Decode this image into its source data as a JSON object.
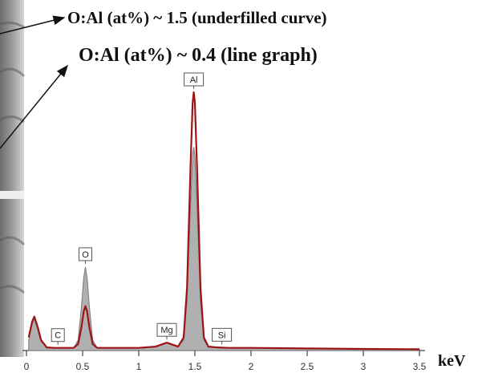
{
  "chart_data": {
    "type": "line",
    "annotations": [
      "O:Al (at%) ~ 1.5 (underfilled curve)",
      "O:Al (at%) ~ 0.4  (line graph)"
    ],
    "x_label": "keV",
    "xlim": [
      0,
      3.5
    ],
    "xticks": [
      0,
      0.5,
      1,
      1.5,
      2,
      2.5,
      3,
      3.5
    ],
    "x": [
      0.02,
      0.05,
      0.07,
      0.1,
      0.13,
      0.18,
      0.25,
      0.35,
      0.42,
      0.46,
      0.49,
      0.51,
      0.525,
      0.54,
      0.56,
      0.59,
      0.63,
      0.7,
      0.85,
      1.0,
      1.15,
      1.25,
      1.35,
      1.4,
      1.43,
      1.46,
      1.48,
      1.49,
      1.5,
      1.52,
      1.55,
      1.58,
      1.62,
      1.7,
      1.8,
      2.0,
      2.5,
      3.0,
      3.5
    ],
    "series": [
      {
        "color": "#b0b0b0",
        "fill": true,
        "values": [
          4,
          10,
          12,
          8,
          3.5,
          1.2,
          1,
          1,
          1,
          4,
          17,
          28,
          32,
          28,
          17,
          4,
          1,
          1,
          1,
          1,
          1.5,
          3,
          1.5,
          4,
          19,
          54,
          75,
          78,
          75,
          54,
          19,
          4,
          1.3,
          1.2,
          1,
          1,
          0.8,
          0.6,
          0.5
        ]
      },
      {
        "color": "#9e1414",
        "fill": false,
        "values": [
          5,
          11,
          13,
          9,
          4,
          1.2,
          1,
          1,
          1,
          2.5,
          9,
          15,
          17,
          15,
          9,
          2.5,
          1,
          1,
          1,
          1,
          1.5,
          3,
          1.5,
          5,
          24,
          69,
          95,
          99,
          95,
          69,
          24,
          5,
          1.5,
          1.2,
          1,
          1,
          0.8,
          0.6,
          0.5
        ]
      }
    ],
    "peak_labels": [
      {
        "text": "C",
        "x": 0.28
      },
      {
        "text": "O",
        "x": 0.525
      },
      {
        "text": "Mg",
        "x": 1.25
      },
      {
        "text": "Al",
        "x": 1.49
      },
      {
        "text": "Si",
        "x": 1.74
      }
    ]
  }
}
